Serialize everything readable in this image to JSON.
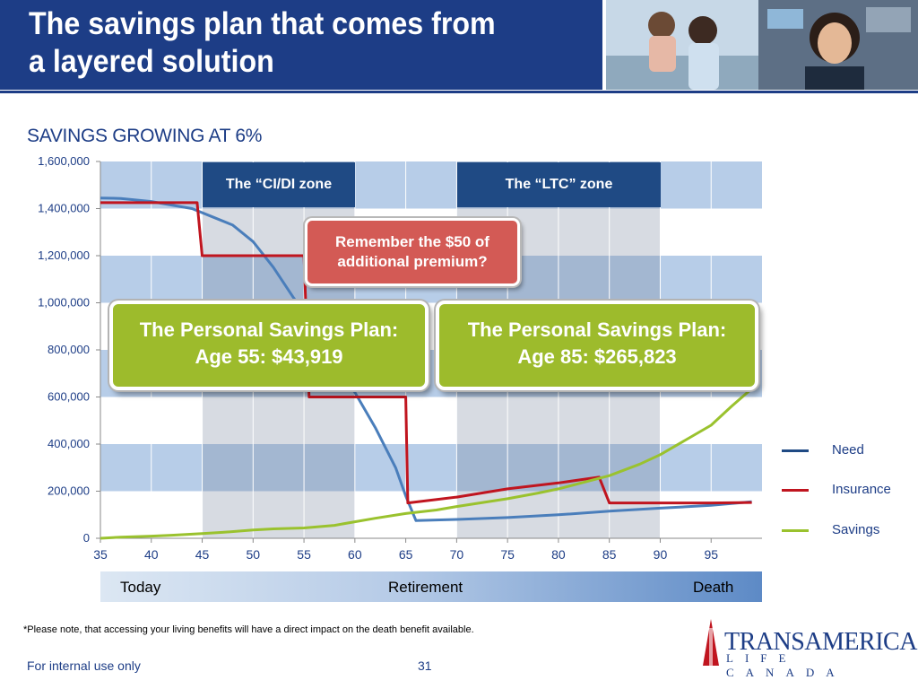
{
  "slide": {
    "title": "The savings plan that comes from\na layered solution",
    "subtitle": "SAVINGS GROWING AT 6%",
    "note": "*Please note, that accessing your living benefits will have a direct impact on the death benefit available.",
    "footer_left": "For internal use only",
    "page_number": "31"
  },
  "logo": {
    "name": "TRANSAMERICA",
    "sub": "LIFE CANADA"
  },
  "callouts": {
    "ci_zone": "The “CI/DI zone",
    "ltc_zone": "The “LTC” zone",
    "remember": "Remember  the $50 of\nadditional premium?",
    "psp_55": "The Personal Savings Plan:\nAge 55: $43,919",
    "psp_85": "The Personal Savings Plan:\nAge 85: $265,823"
  },
  "timeline": {
    "today": "Today",
    "retirement": "Retirement",
    "death": "Death"
  },
  "colors": {
    "need": "#4a7ebb",
    "insurance": "#c0151f",
    "savings": "#9ac22e",
    "brand": "#1d3d86"
  },
  "chart_data": {
    "type": "line",
    "title": "SAVINGS GROWING AT 6%",
    "xlabel": "",
    "ylabel": "",
    "xlim": [
      35,
      100
    ],
    "ylim": [
      0,
      1600000
    ],
    "xticks": [
      35,
      40,
      45,
      50,
      55,
      60,
      65,
      70,
      75,
      80,
      85,
      90,
      95
    ],
    "yticks": [
      0,
      200000,
      400000,
      600000,
      800000,
      1000000,
      1200000,
      1400000,
      1600000
    ],
    "ytick_labels": [
      "0",
      "200,000",
      "400,000",
      "600,000",
      "800,000",
      "1,000,000",
      "1,200,000",
      "1,400,000",
      "1,600,000"
    ],
    "shaded_age_ranges": [
      [
        45,
        60
      ],
      [
        70,
        90
      ]
    ],
    "banded_background": true,
    "legend": "right",
    "series": [
      {
        "name": "Need",
        "color": "#4a7ebb",
        "x": [
          35,
          37,
          40,
          42,
          44,
          46,
          48,
          50,
          52,
          54,
          56,
          58,
          60,
          62,
          64,
          65,
          66,
          70,
          75,
          80,
          85,
          90,
          95,
          99
        ],
        "y": [
          1445000,
          1443000,
          1430000,
          1415000,
          1400000,
          1365000,
          1330000,
          1260000,
          1150000,
          1020000,
          900000,
          760000,
          620000,
          470000,
          300000,
          180000,
          75000,
          80000,
          88000,
          100000,
          115000,
          128000,
          140000,
          155000
        ]
      },
      {
        "name": "Insurance",
        "color": "#c0151f",
        "x": [
          35,
          44.5,
          45,
          55,
          55.5,
          65,
          65.2,
          70,
          75,
          80,
          84,
          85,
          90,
          95,
          99
        ],
        "y": [
          1425000,
          1425000,
          1200000,
          1200000,
          600000,
          600000,
          150000,
          175000,
          210000,
          235000,
          260000,
          150000,
          150000,
          150000,
          152000
        ]
      },
      {
        "name": "Savings",
        "color": "#9ac22e",
        "x": [
          35,
          37,
          40,
          42,
          45,
          47,
          50,
          52,
          55,
          58,
          60,
          62,
          65,
          68,
          70,
          72,
          75,
          78,
          80,
          82,
          85,
          88,
          90,
          92,
          95,
          97,
          99
        ],
        "y": [
          0,
          5000,
          9000,
          13000,
          20000,
          25000,
          35000,
          40000,
          44000,
          55000,
          70000,
          85000,
          105000,
          120000,
          135000,
          148000,
          168000,
          192000,
          210000,
          232000,
          266000,
          315000,
          355000,
          405000,
          480000,
          560000,
          635000
        ]
      }
    ]
  }
}
